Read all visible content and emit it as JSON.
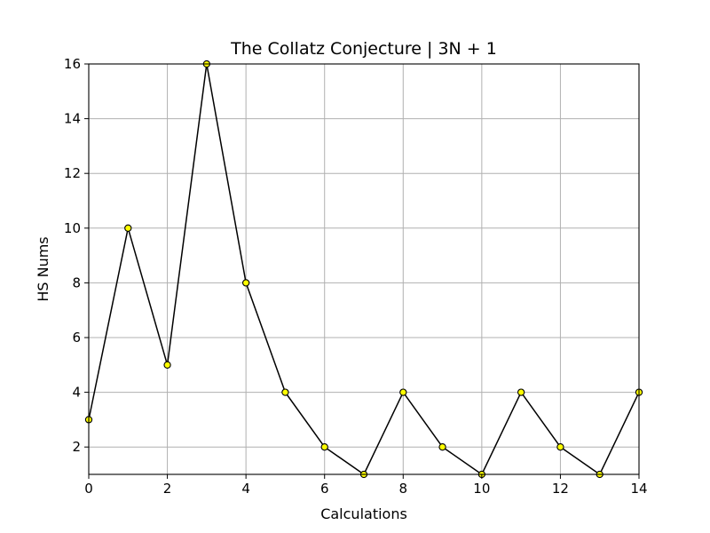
{
  "chart_data": {
    "type": "line",
    "title": "The Collatz Conjecture | 3N + 1",
    "xlabel": "Calculations",
    "ylabel": "HS Nums",
    "xlim": [
      0,
      14
    ],
    "ylim": [
      1,
      16
    ],
    "xticks": [
      0,
      2,
      4,
      6,
      8,
      10,
      12,
      14
    ],
    "yticks": [
      2,
      4,
      6,
      8,
      10,
      12,
      14,
      16
    ],
    "grid": true,
    "series": [
      {
        "x": [
          0,
          1,
          2,
          3,
          4,
          5,
          6,
          7,
          8,
          9,
          10,
          11,
          12,
          13,
          14
        ],
        "y": [
          3,
          10,
          5,
          16,
          8,
          4,
          2,
          1,
          4,
          2,
          1,
          4,
          2,
          1,
          4
        ],
        "line_color": "#000000",
        "marker": "circle",
        "marker_fill": "#ffff00",
        "marker_edge": "#000000"
      }
    ]
  }
}
